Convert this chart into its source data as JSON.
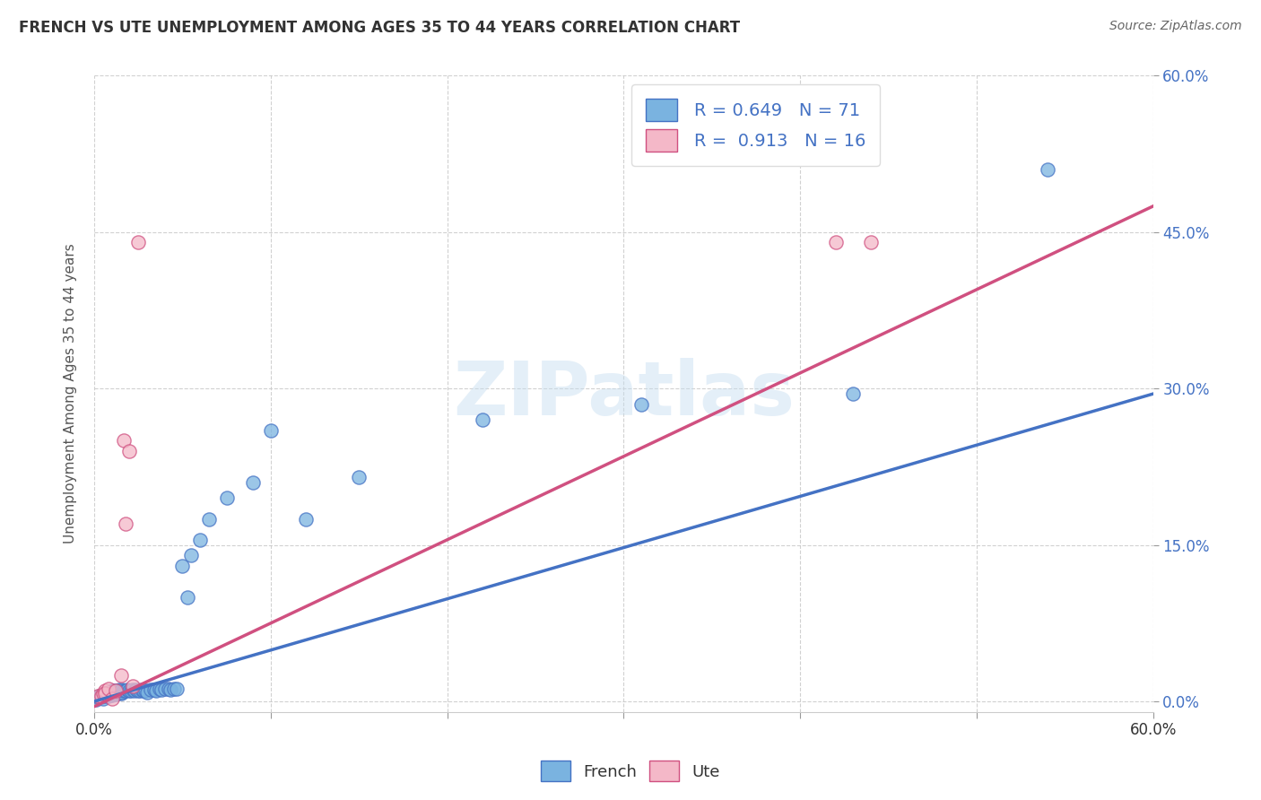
{
  "title": "FRENCH VS UTE UNEMPLOYMENT AMONG AGES 35 TO 44 YEARS CORRELATION CHART",
  "source": "Source: ZipAtlas.com",
  "ylabel": "Unemployment Among Ages 35 to 44 years",
  "xlim": [
    0.0,
    0.6
  ],
  "ylim": [
    -0.01,
    0.6
  ],
  "xticks": [
    0.0,
    0.1,
    0.2,
    0.3,
    0.4,
    0.5,
    0.6
  ],
  "yticks": [
    0.0,
    0.15,
    0.3,
    0.45,
    0.6
  ],
  "yticklabels": [
    "0.0%",
    "15.0%",
    "30.0%",
    "45.0%",
    "60.0%"
  ],
  "french_color": "#7ab3e0",
  "french_color_dark": "#4472c4",
  "ute_color": "#f4b8c8",
  "ute_color_dark": "#d05080",
  "french_R": 0.649,
  "french_N": 71,
  "ute_R": 0.913,
  "ute_N": 16,
  "background_color": "#ffffff",
  "grid_color": "#cccccc",
  "watermark": "ZIPatlas",
  "french_x": [
    0.001,
    0.002,
    0.003,
    0.004,
    0.004,
    0.005,
    0.005,
    0.005,
    0.006,
    0.006,
    0.007,
    0.007,
    0.008,
    0.008,
    0.008,
    0.009,
    0.009,
    0.01,
    0.01,
    0.01,
    0.011,
    0.011,
    0.011,
    0.012,
    0.012,
    0.013,
    0.013,
    0.014,
    0.014,
    0.015,
    0.015,
    0.016,
    0.016,
    0.017,
    0.018,
    0.019,
    0.02,
    0.021,
    0.022,
    0.023,
    0.024,
    0.025,
    0.026,
    0.027,
    0.028,
    0.029,
    0.03,
    0.032,
    0.034,
    0.035,
    0.037,
    0.038,
    0.04,
    0.042,
    0.043,
    0.045,
    0.047,
    0.05,
    0.053,
    0.055,
    0.06,
    0.065,
    0.075,
    0.09,
    0.1,
    0.12,
    0.15,
    0.22,
    0.31,
    0.43,
    0.54
  ],
  "french_y": [
    0.002,
    0.004,
    0.005,
    0.004,
    0.006,
    0.003,
    0.006,
    0.007,
    0.005,
    0.007,
    0.006,
    0.008,
    0.005,
    0.007,
    0.009,
    0.006,
    0.008,
    0.006,
    0.008,
    0.01,
    0.007,
    0.009,
    0.01,
    0.007,
    0.009,
    0.008,
    0.01,
    0.009,
    0.011,
    0.008,
    0.01,
    0.009,
    0.011,
    0.01,
    0.01,
    0.011,
    0.01,
    0.01,
    0.011,
    0.01,
    0.011,
    0.01,
    0.01,
    0.011,
    0.01,
    0.01,
    0.009,
    0.011,
    0.011,
    0.01,
    0.012,
    0.011,
    0.012,
    0.012,
    0.011,
    0.012,
    0.012,
    0.13,
    0.1,
    0.14,
    0.155,
    0.175,
    0.195,
    0.21,
    0.26,
    0.175,
    0.215,
    0.27,
    0.285,
    0.295,
    0.51
  ],
  "ute_x": [
    0.002,
    0.004,
    0.005,
    0.006,
    0.006,
    0.008,
    0.01,
    0.012,
    0.015,
    0.017,
    0.018,
    0.02,
    0.022,
    0.025,
    0.42,
    0.44
  ],
  "ute_y": [
    0.005,
    0.005,
    0.008,
    0.01,
    0.008,
    0.012,
    0.003,
    0.01,
    0.025,
    0.25,
    0.17,
    0.24,
    0.015,
    0.44,
    0.44,
    0.44
  ],
  "fr_line_x": [
    0.0,
    0.6
  ],
  "fr_line_y": [
    0.0,
    0.295
  ],
  "ute_line_x": [
    0.0,
    0.6
  ],
  "ute_line_y": [
    -0.005,
    0.475
  ]
}
